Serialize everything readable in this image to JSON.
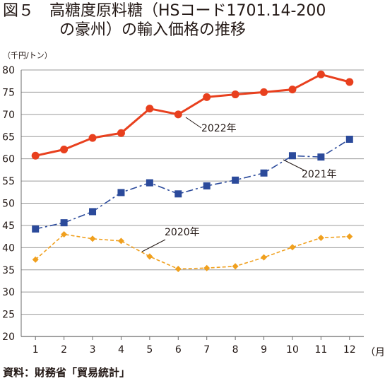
{
  "title_line1": "図５　高糖度原料糖（HSコード1701.14-200",
  "title_line2": "の豪州）の輸入価格の推移",
  "unit_label": "（千円/トン）",
  "source": "資料：財務省「貿易統計」",
  "chart_data": {
    "type": "line",
    "title": "図５　高糖度原料糖（HSコード1701.14-200の豪州）の輸入価格の推移",
    "ylabel": "（千円/トン）",
    "xlabel": "（月）",
    "x": [
      1,
      2,
      3,
      4,
      5,
      6,
      7,
      8,
      9,
      10,
      11,
      12
    ],
    "x_tick_labels": [
      "1",
      "2",
      "3",
      "4",
      "5",
      "6",
      "7",
      "8",
      "9",
      "10",
      "11",
      "12"
    ],
    "y_tick_labels": [
      "80",
      "75",
      "70",
      "65",
      "60",
      "55",
      "50",
      "45",
      "40",
      "35",
      "30",
      "25",
      "20"
    ],
    "ylim": [
      20,
      80
    ],
    "grid": "horizontal",
    "series": [
      {
        "name": "2020年",
        "color": "#f0a01e",
        "marker": "diamond",
        "dash": "dashed",
        "values": [
          37.3,
          43.0,
          42.0,
          41.5,
          38.0,
          35.2,
          35.4,
          35.8,
          37.8,
          40.1,
          42.2,
          42.5
        ]
      },
      {
        "name": "2021年",
        "color": "#2b4a9b",
        "marker": "square",
        "dash": "dashdot",
        "values": [
          44.2,
          45.6,
          48.1,
          52.4,
          54.6,
          52.1,
          53.9,
          55.2,
          56.8,
          60.7,
          60.4,
          64.4
        ]
      },
      {
        "name": "2022年",
        "color": "#e8401e",
        "marker": "circle",
        "dash": "solid",
        "values": [
          60.7,
          62.1,
          64.7,
          65.8,
          71.3,
          70.0,
          73.9,
          74.5,
          75.0,
          75.6,
          79.0,
          77.3
        ]
      }
    ]
  }
}
